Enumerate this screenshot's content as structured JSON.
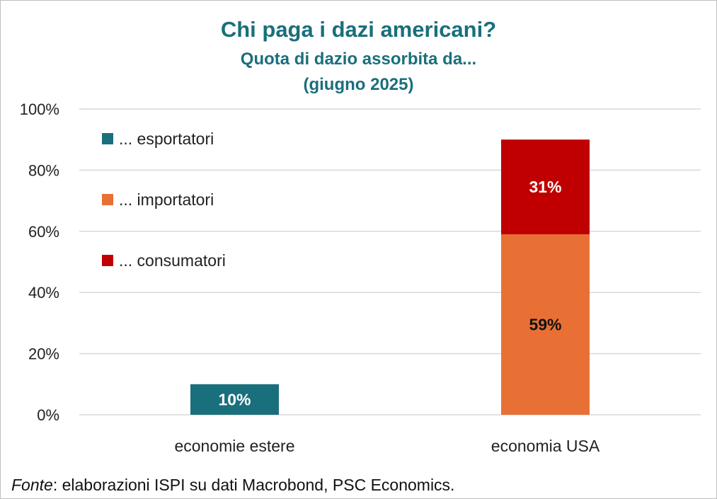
{
  "title": "Chi paga i dazi americani?",
  "subtitle": "Quota di dazio assorbita da...",
  "subtitle2": "(giugno 2025)",
  "source": {
    "label": "Fonte",
    "text": ": elaborazioni ISPI su dati Macrobond, PSC Economics."
  },
  "chart_data": {
    "type": "bar",
    "stacked": true,
    "categories": [
      "economie estere",
      "economia USA"
    ],
    "series": [
      {
        "name": "... esportatori",
        "values": [
          10,
          0
        ],
        "labels": [
          "10%",
          ""
        ],
        "color": "#1a6f7c",
        "label_color": "#ffffff"
      },
      {
        "name": "... importatori",
        "values": [
          0,
          59
        ],
        "labels": [
          "",
          "59%"
        ],
        "color": "#e87035",
        "label_color": "#111111"
      },
      {
        "name": "... consumatori",
        "values": [
          0,
          31
        ],
        "labels": [
          "",
          "31%"
        ],
        "color": "#c00000",
        "label_color": "#ffffff"
      }
    ],
    "ylim": [
      0,
      100
    ],
    "yticks": [
      0,
      20,
      40,
      60,
      80,
      100
    ],
    "ytick_labels": [
      "0%",
      "20%",
      "40%",
      "60%",
      "80%",
      "100%"
    ],
    "grid": true,
    "legend_position": "top-left"
  }
}
